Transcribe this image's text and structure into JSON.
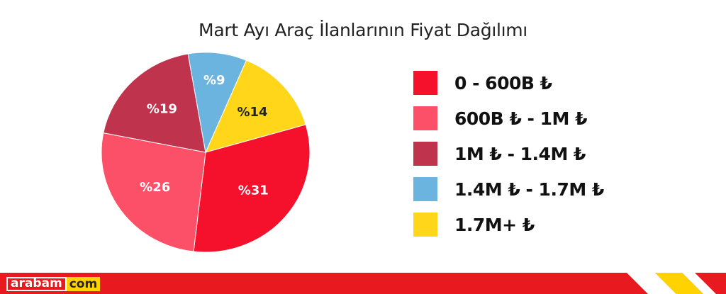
{
  "title": "Mart Ayı Araç İlanlarının Fiyat Dağılımı",
  "chart_data": {
    "type": "pie",
    "title": "Mart Ayı Araç İlanlarının Fiyat Dağılımı",
    "legend_position": "right",
    "categories": [
      "0 - 600B ₺",
      "600B ₺ - 1M ₺",
      "1M ₺ - 1.4M ₺",
      "1.4M ₺ - 1.7M ₺",
      "1.7M+ ₺"
    ],
    "values": [
      31,
      26,
      19,
      9,
      14
    ],
    "labels": [
      "%31",
      "%26",
      "%19",
      "%9",
      "%14"
    ],
    "colors": [
      "#f5102c",
      "#fb5068",
      "#c0334c",
      "#6cb4e0",
      "#ffd61a"
    ],
    "label_colors": [
      "#ffffff",
      "#ffffff",
      "#ffffff",
      "#ffffff",
      "#222222"
    ]
  },
  "legend": [
    {
      "label": "0 - 600B ₺",
      "color": "#f5102c"
    },
    {
      "label": "600B ₺ - 1M ₺",
      "color": "#fb5068"
    },
    {
      "label": "1M ₺ - 1.4M ₺",
      "color": "#c0334c"
    },
    {
      "label": "1.4M ₺ - 1.7M ₺",
      "color": "#6cb4e0"
    },
    {
      "label": "1.7M+ ₺",
      "color": "#ffd61a"
    }
  ],
  "footer": {
    "logo_part1": "arabam",
    "logo_part2": "com",
    "brand_red": "#e8191f",
    "brand_yellow": "#ffd200"
  }
}
